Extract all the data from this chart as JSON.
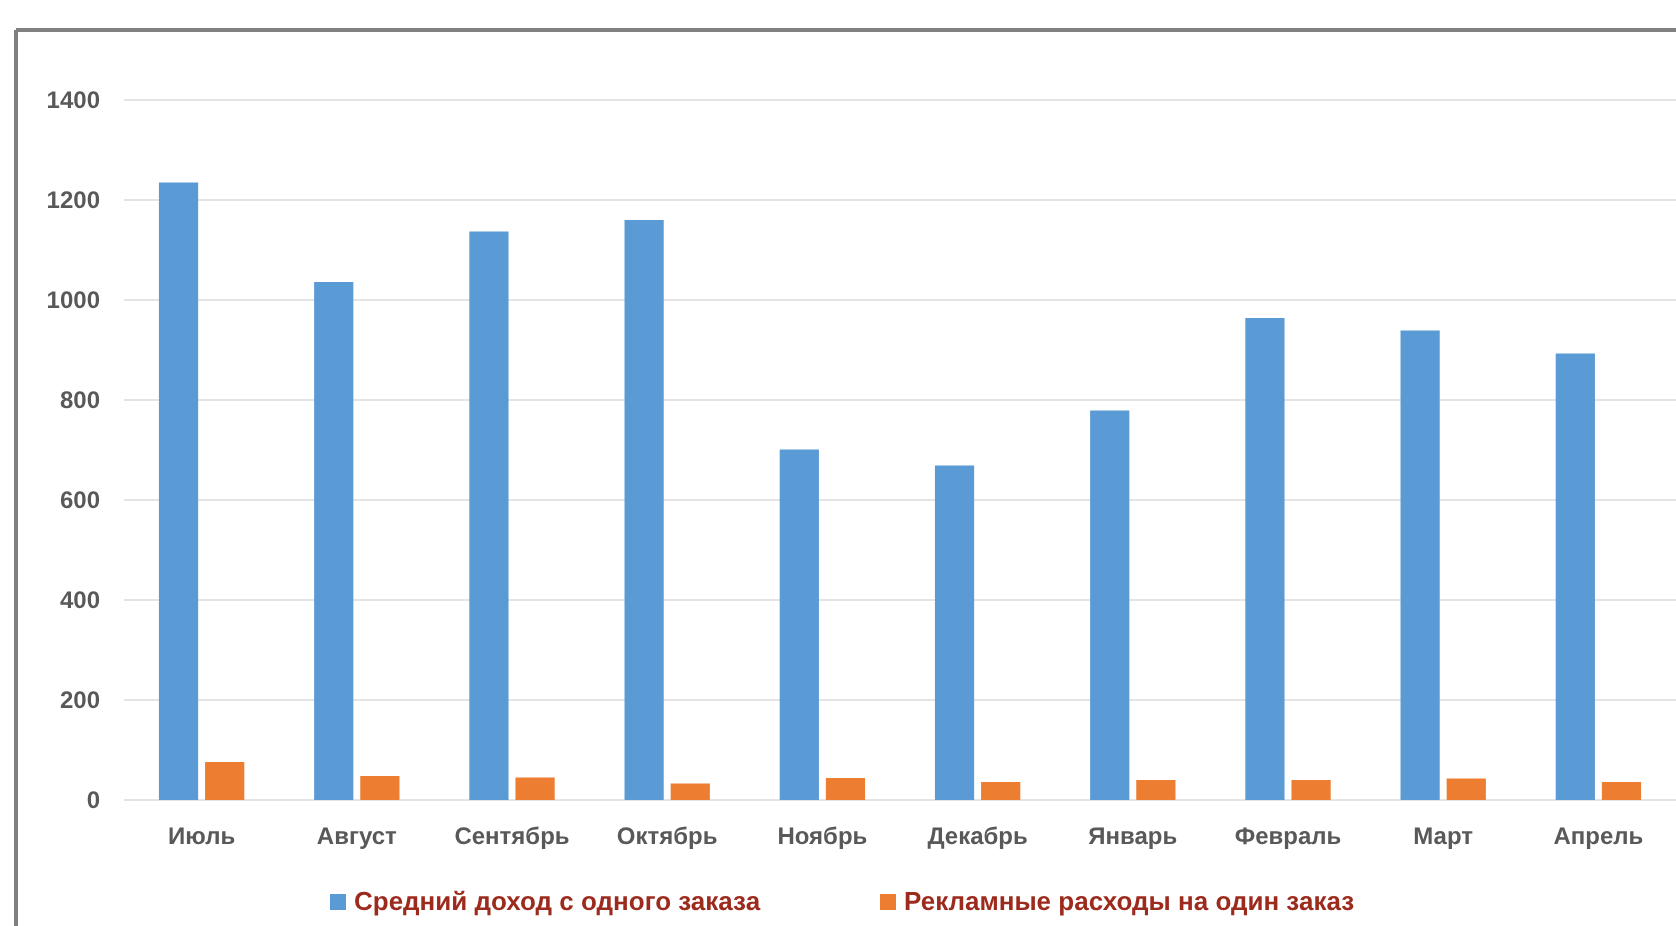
{
  "chart_data": {
    "type": "bar",
    "categories": [
      "Июль",
      "Август",
      "Сентябрь",
      "Октябрь",
      "Ноябрь",
      "Декабрь",
      "Январь",
      "Февраль",
      "Март",
      "Апрель"
    ],
    "series": [
      {
        "name": "Средний доход с одного заказа",
        "color": "#5b9bd5",
        "values": [
          1235,
          1036,
          1137,
          1160,
          701,
          669,
          779,
          964,
          939,
          893
        ]
      },
      {
        "name": "Рекламные расходы на один заказ",
        "color": "#ed7d31",
        "values": [
          76,
          48,
          45,
          33,
          44,
          36,
          40,
          40,
          43,
          36
        ]
      }
    ],
    "ylim": [
      0,
      1400
    ],
    "yticks": [
      0,
      200,
      400,
      600,
      800,
      1000,
      1200,
      1400
    ],
    "grid": "y",
    "legend": "bottom"
  }
}
